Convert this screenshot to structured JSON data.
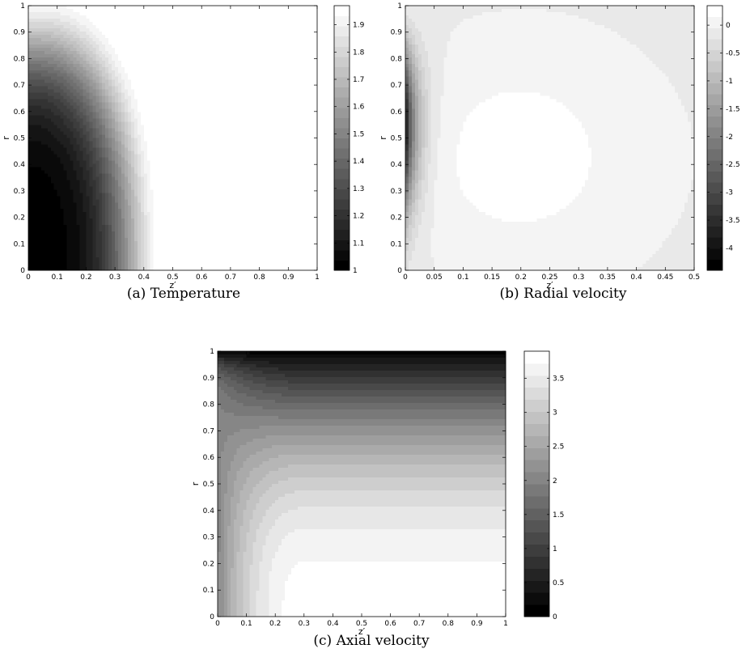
{
  "chart_data": [
    {
      "type": "heatmap",
      "panel": "(a)",
      "caption": "(a) Temperature",
      "xlabel": "z′",
      "ylabel": "r",
      "xlim": [
        0,
        1
      ],
      "ylim": [
        0,
        1
      ],
      "xticks": [
        "0",
        "0.1",
        "0.2",
        "0.3",
        "0.4",
        "0.5",
        "0.6",
        "0.7",
        "0.8",
        "0.9",
        "1"
      ],
      "yticks": [
        "0",
        "0.1",
        "0.2",
        "0.3",
        "0.4",
        "0.5",
        "0.6",
        "0.7",
        "0.8",
        "0.9",
        "1"
      ],
      "colormap": "gray",
      "colorbar": {
        "range": [
          1,
          1.97
        ],
        "ticks": [
          "1",
          "1.1",
          "1.2",
          "1.3",
          "1.4",
          "1.5",
          "1.6",
          "1.7",
          "1.8",
          "1.9"
        ]
      },
      "field": "T(z′, r): 1 at z′ = 0 rising toward 1.97 downstream; contours bowed (values near r = 1 warm up earliest)"
    },
    {
      "type": "heatmap",
      "panel": "(b)",
      "caption": "(b) Radial velocity",
      "xlabel": "z′",
      "ylabel": "r",
      "xlim": [
        0,
        0.5
      ],
      "ylim": [
        0,
        1
      ],
      "xticks": [
        "0",
        "0.05",
        "0.1",
        "0.15",
        "0.2",
        "0.25",
        "0.3",
        "0.35",
        "0.4",
        "0.45",
        "0.5"
      ],
      "yticks": [
        "0",
        "0.1",
        "0.2",
        "0.3",
        "0.4",
        "0.5",
        "0.6",
        "0.7",
        "0.8",
        "0.9",
        "1"
      ],
      "colormap": "gray",
      "colorbar": {
        "range": [
          -4.4,
          0.35
        ],
        "ticks": [
          "0",
          "-0.5",
          "-1",
          "-1.5",
          "-2",
          "-2.5",
          "-3",
          "-3.5",
          "-4"
        ]
      },
      "field": "v_r(z′, r): minimum about -4.4 near z′ = 0, r ≈ 0.55; closed positive lobe centred near z′ ≈ 0.19, r ≈ 0.43"
    },
    {
      "type": "heatmap",
      "panel": "(c)",
      "caption": "(c) Axial velocity",
      "xlabel": "z′",
      "ylabel": "r",
      "xlim": [
        0,
        1
      ],
      "ylim": [
        0,
        1
      ],
      "xticks": [
        "0",
        "0.1",
        "0.2",
        "0.3",
        "0.4",
        "0.5",
        "0.6",
        "0.7",
        "0.8",
        "0.9",
        "1"
      ],
      "yticks": [
        "0",
        "0.1",
        "0.2",
        "0.3",
        "0.4",
        "0.5",
        "0.6",
        "0.7",
        "0.8",
        "0.9",
        "1"
      ],
      "colormap": "gray",
      "colorbar": {
        "range": [
          0,
          3.9
        ],
        "ticks": [
          "0",
          "0.5",
          "1",
          "1.5",
          "2",
          "2.5",
          "3",
          "3.5"
        ]
      },
      "field": "v_z(z′, r): 0 at r = 1; near-uniform inflow at z′ = 0 developing to a profile with maximum about 3.9 on the axis"
    }
  ]
}
